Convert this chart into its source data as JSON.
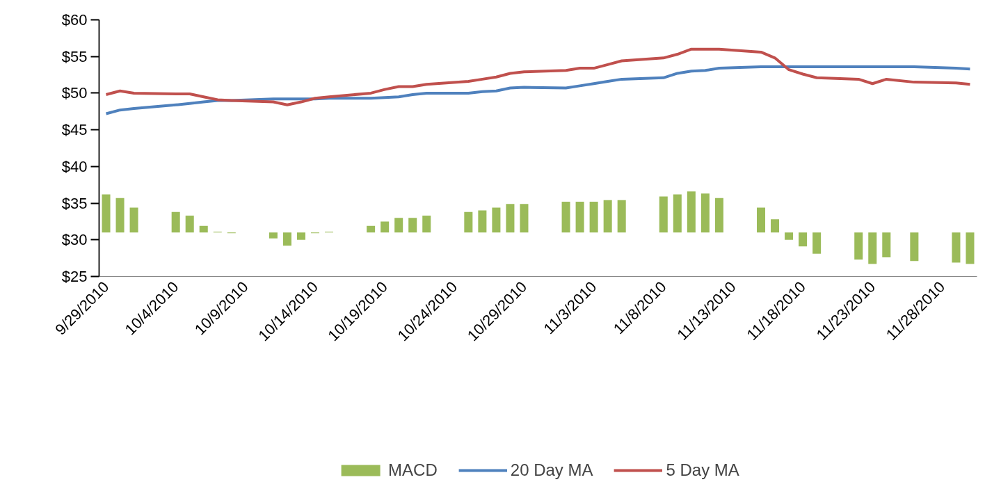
{
  "chart_data": {
    "type": "line",
    "x": [
      "2010-09-29",
      "2010-09-30",
      "2010-10-01",
      "2010-10-04",
      "2010-10-05",
      "2010-10-06",
      "2010-10-07",
      "2010-10-08",
      "2010-10-11",
      "2010-10-12",
      "2010-10-13",
      "2010-10-14",
      "2010-10-15",
      "2010-10-18",
      "2010-10-19",
      "2010-10-20",
      "2010-10-21",
      "2010-10-22",
      "2010-10-25",
      "2010-10-26",
      "2010-10-27",
      "2010-10-28",
      "2010-10-29",
      "2010-11-01",
      "2010-11-02",
      "2010-11-03",
      "2010-11-04",
      "2010-11-05",
      "2010-11-08",
      "2010-11-09",
      "2010-11-10",
      "2010-11-11",
      "2010-11-12",
      "2010-11-15",
      "2010-11-16",
      "2010-11-17",
      "2010-11-18",
      "2010-11-19",
      "2010-11-22",
      "2010-11-23",
      "2010-11-24",
      "2010-11-26",
      "2010-11-29",
      "2010-11-30"
    ],
    "series": [
      {
        "name": "MACD",
        "type": "bar",
        "color": "#9bbb59",
        "base": [
          31,
          31,
          31,
          31,
          31,
          31,
          31,
          31,
          31,
          31,
          31,
          31,
          31,
          31,
          31,
          31,
          31,
          31,
          31,
          31,
          31,
          31,
          31,
          31,
          31,
          31,
          31,
          31,
          31,
          31,
          31,
          31,
          31,
          31,
          31,
          31,
          31,
          31,
          31,
          31,
          31,
          31,
          31,
          31
        ],
        "values": [
          5.2,
          4.7,
          3.4,
          2.8,
          2.3,
          0.9,
          0.1,
          -0.1,
          -0.8,
          -1.8,
          -1.0,
          -0.1,
          0.1,
          0.9,
          1.5,
          2.0,
          2.0,
          2.3,
          2.8,
          3.0,
          3.4,
          3.9,
          3.9,
          4.2,
          4.2,
          4.2,
          4.4,
          4.4,
          4.9,
          5.2,
          5.6,
          5.3,
          4.7,
          3.4,
          1.8,
          -1.0,
          -1.9,
          -2.9,
          -3.7,
          -4.3,
          -3.4,
          -3.9,
          -4.1,
          -4.3
        ]
      },
      {
        "name": "20 Day MA",
        "color": "#4f81bd",
        "values": [
          47.2,
          47.7,
          47.9,
          48.4,
          48.6,
          48.8,
          49.0,
          49.0,
          49.2,
          49.2,
          49.2,
          49.2,
          49.3,
          49.3,
          49.4,
          49.5,
          49.8,
          50.0,
          50.0,
          50.2,
          50.3,
          50.7,
          50.8,
          50.7,
          51.0,
          51.3,
          51.6,
          51.9,
          52.1,
          52.7,
          53.0,
          53.1,
          53.4,
          53.6,
          53.6,
          53.6,
          53.6,
          53.6,
          53.6,
          53.6,
          53.6,
          53.6,
          53.4,
          53.3
        ]
      },
      {
        "name": "5 Day MA",
        "color": "#c0504d",
        "values": [
          49.8,
          50.3,
          50.0,
          49.9,
          49.9,
          49.5,
          49.1,
          49.0,
          48.8,
          48.4,
          48.8,
          49.3,
          49.5,
          50.0,
          50.5,
          50.9,
          50.9,
          51.2,
          51.6,
          51.9,
          52.2,
          52.7,
          52.9,
          53.1,
          53.4,
          53.4,
          53.9,
          54.4,
          54.8,
          55.3,
          56.0,
          56.0,
          56.0,
          55.6,
          54.8,
          53.2,
          52.6,
          52.1,
          51.9,
          51.3,
          51.9,
          51.5,
          51.4,
          51.2
        ]
      }
    ],
    "xlim": [
      "2010-09-28T12:00",
      "2010-11-30T12:00"
    ],
    "xticks": [
      {
        "value": "2010-09-29",
        "label": "9/29/2010"
      },
      {
        "value": "2010-10-04",
        "label": "10/4/2010"
      },
      {
        "value": "2010-10-09",
        "label": "10/9/2010"
      },
      {
        "value": "2010-10-14",
        "label": "10/14/2010"
      },
      {
        "value": "2010-10-19",
        "label": "10/19/2010"
      },
      {
        "value": "2010-10-24",
        "label": "10/24/2010"
      },
      {
        "value": "2010-10-29",
        "label": "10/29/2010"
      },
      {
        "value": "2010-11-03",
        "label": "11/3/2010"
      },
      {
        "value": "2010-11-08",
        "label": "11/8/2010"
      },
      {
        "value": "2010-11-13",
        "label": "11/13/2010"
      },
      {
        "value": "2010-11-18",
        "label": "11/18/2010"
      },
      {
        "value": "2010-11-23",
        "label": "11/23/2010"
      },
      {
        "value": "2010-11-28",
        "label": "11/28/2010"
      }
    ],
    "ylim": [
      25,
      60
    ],
    "yticks": [
      {
        "value": 25,
        "label": "$25"
      },
      {
        "value": 30,
        "label": "$30"
      },
      {
        "value": 35,
        "label": "$35"
      },
      {
        "value": 40,
        "label": "$40"
      },
      {
        "value": 45,
        "label": "$45"
      },
      {
        "value": 50,
        "label": "$50"
      },
      {
        "value": 55,
        "label": "$55"
      },
      {
        "value": 60,
        "label": "$60"
      }
    ],
    "grid": false,
    "legend": "bottom"
  }
}
